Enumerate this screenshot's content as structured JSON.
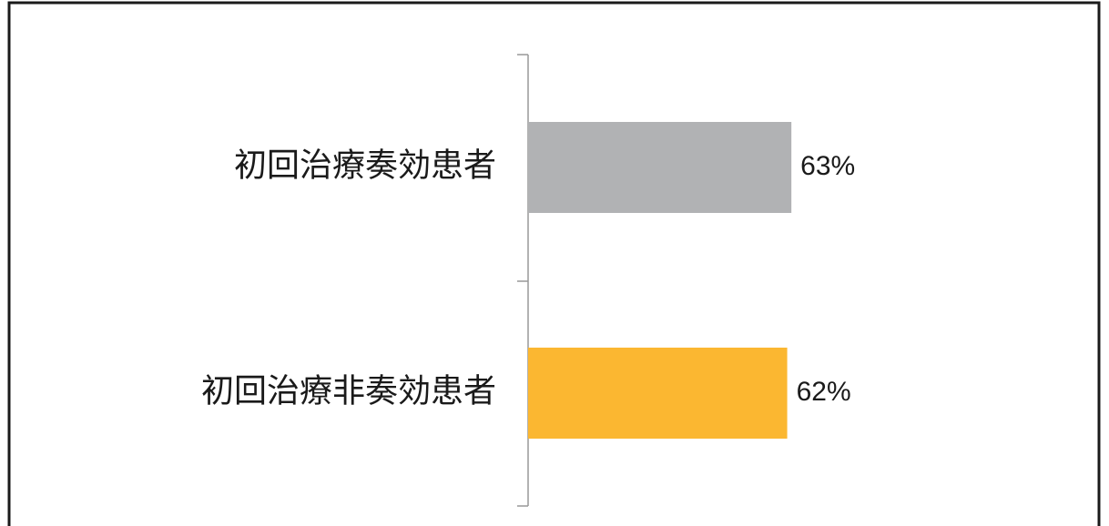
{
  "chart_data": {
    "type": "bar",
    "orientation": "horizontal",
    "categories": [
      "初回治療奏効患者",
      "初回治療非奏効患者"
    ],
    "values": [
      63,
      62
    ],
    "value_labels": [
      "63%",
      "62%"
    ],
    "colors": [
      "#b1b2b4",
      "#fbb731"
    ]
  }
}
